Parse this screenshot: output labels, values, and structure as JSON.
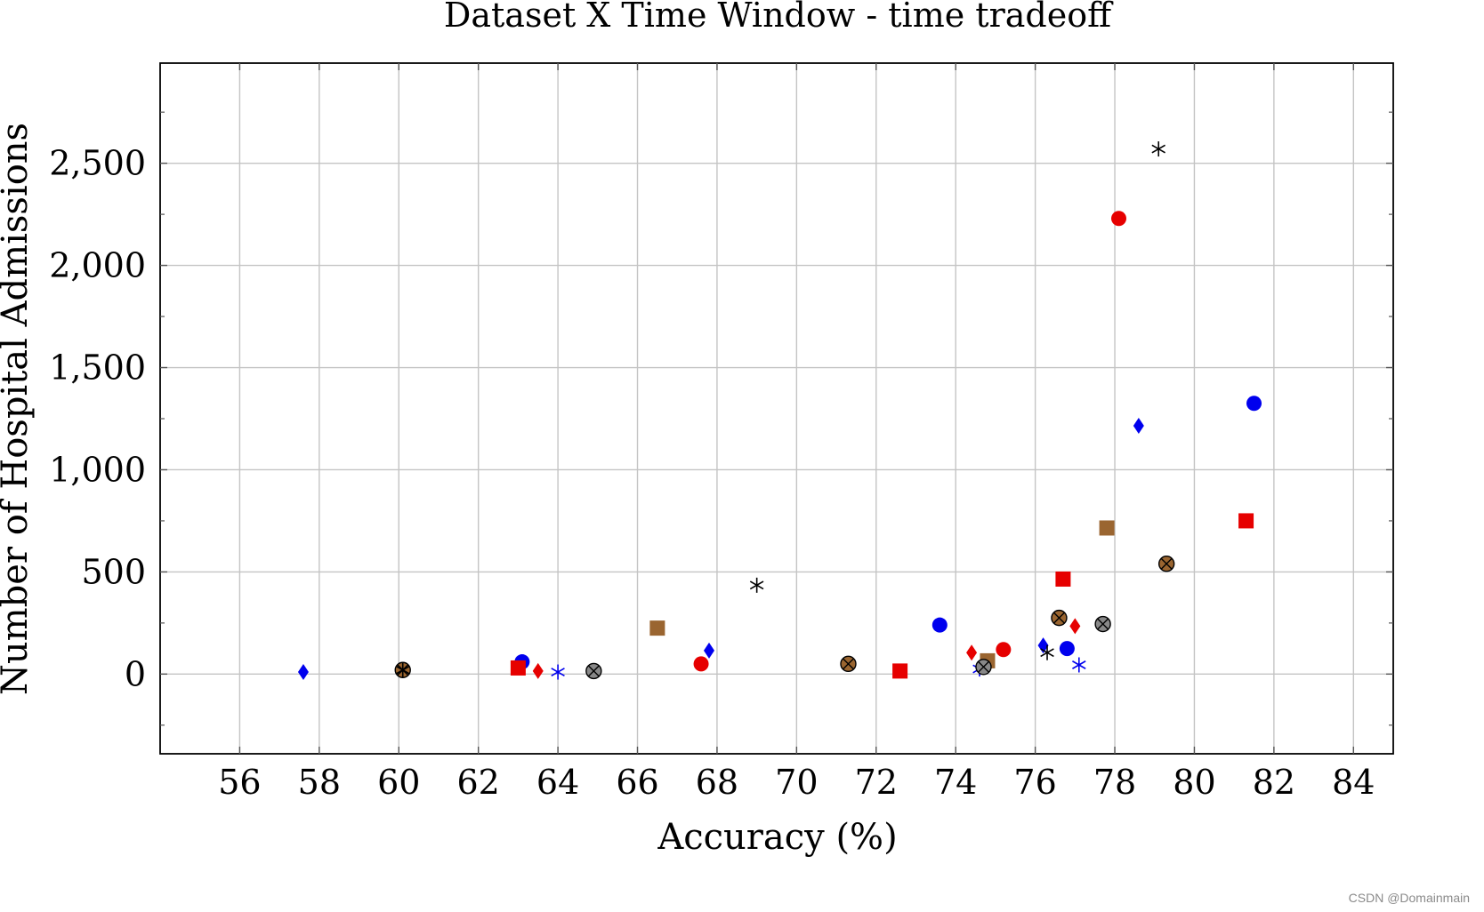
{
  "chart_data": {
    "type": "scatter",
    "title": "Dataset X Time Window - time tradeoff",
    "xlabel": "Accuracy (%)",
    "ylabel": "Number of Hospital Admissions",
    "xlim": [
      54,
      85
    ],
    "ylim": [
      -390,
      2990
    ],
    "x_ticks": [
      56,
      58,
      60,
      62,
      64,
      66,
      68,
      70,
      72,
      74,
      76,
      78,
      80,
      82,
      84
    ],
    "y_ticks": [
      0,
      500,
      1000,
      1500,
      2000,
      2500
    ],
    "y_tick_labels": [
      "0",
      "500",
      "1,000",
      "1,500",
      "2,000",
      "2,500"
    ],
    "y_minor_ticks": [
      -250,
      250,
      750,
      1250,
      1750,
      2250,
      2750
    ],
    "grid": true,
    "legend": "none",
    "series": [
      {
        "marker": "diamond",
        "color": "#0000ee",
        "points": [
          [
            57.6,
            10
          ],
          [
            67.8,
            115
          ],
          [
            76.2,
            140
          ],
          [
            78.6,
            1215
          ]
        ]
      },
      {
        "marker": "circle",
        "color": "#0000ee",
        "points": [
          [
            63.1,
            60
          ],
          [
            73.6,
            240
          ],
          [
            76.8,
            125
          ],
          [
            81.5,
            1325
          ]
        ]
      },
      {
        "marker": "star",
        "color": "#0000ee",
        "points": [
          [
            64.0,
            10
          ],
          [
            74.6,
            25
          ],
          [
            77.1,
            45
          ]
        ]
      },
      {
        "marker": "circle",
        "color": "#e60000",
        "points": [
          [
            67.6,
            50
          ],
          [
            75.2,
            120
          ],
          [
            78.1,
            2230
          ]
        ]
      },
      {
        "marker": "square",
        "color": "#e60000",
        "points": [
          [
            63.0,
            30
          ],
          [
            72.6,
            15
          ],
          [
            76.7,
            465
          ],
          [
            81.3,
            750
          ]
        ]
      },
      {
        "marker": "diamond",
        "color": "#e60000",
        "points": [
          [
            63.5,
            15
          ],
          [
            74.4,
            105
          ],
          [
            77.0,
            235
          ]
        ]
      },
      {
        "marker": "square",
        "color": "#9a6530",
        "points": [
          [
            66.5,
            225
          ],
          [
            74.8,
            65
          ],
          [
            77.8,
            715
          ]
        ]
      },
      {
        "marker": "circle-x",
        "color": "#9a6530",
        "points": [
          [
            60.1,
            20
          ],
          [
            71.3,
            50
          ],
          [
            76.6,
            275
          ],
          [
            79.3,
            540
          ]
        ]
      },
      {
        "marker": "circle-x",
        "color": "#888888",
        "points": [
          [
            64.9,
            15
          ],
          [
            74.7,
            35
          ],
          [
            77.7,
            245
          ]
        ]
      },
      {
        "marker": "star",
        "color": "#000000",
        "points": [
          [
            60.1,
            20
          ],
          [
            69.0,
            435
          ],
          [
            76.3,
            105
          ],
          [
            79.1,
            2570
          ]
        ]
      }
    ]
  },
  "watermark": "CSDN @Domainmain"
}
